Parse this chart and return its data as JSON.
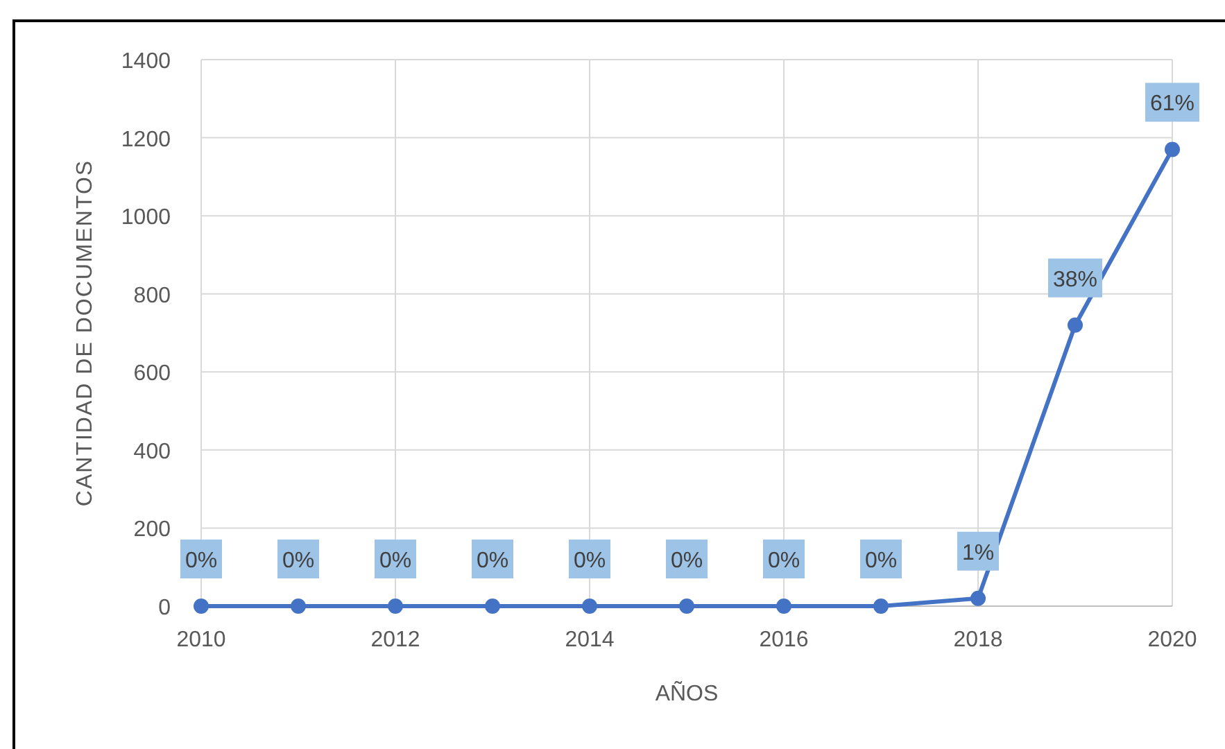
{
  "chart_data": {
    "type": "line",
    "xlabel": "AÑOS",
    "ylabel": "CANTIDAD DE DOCUMENTOS",
    "x": [
      2010,
      2011,
      2012,
      2013,
      2014,
      2015,
      2016,
      2017,
      2018,
      2019,
      2020
    ],
    "series": [
      {
        "color": "#4472c4",
        "values": [
          0,
          0,
          0,
          0,
          0,
          0,
          0,
          0,
          20,
          720,
          1170
        ]
      }
    ],
    "annotations": [
      {
        "text": "0%",
        "x": 2010,
        "y": 0
      },
      {
        "text": "0%",
        "x": 2011,
        "y": 0
      },
      {
        "text": "0%",
        "x": 2012,
        "y": 0
      },
      {
        "text": "0%",
        "x": 2013,
        "y": 0
      },
      {
        "text": "0%",
        "x": 2014,
        "y": 0
      },
      {
        "text": "0%",
        "x": 2015,
        "y": 0
      },
      {
        "text": "0%",
        "x": 2016,
        "y": 0
      },
      {
        "text": "0%",
        "x": 2017,
        "y": 0
      },
      {
        "text": "1%",
        "x": 2018,
        "y": 20
      },
      {
        "text": "38%",
        "x": 2019,
        "y": 720
      },
      {
        "text": "61%",
        "x": 2020,
        "y": 1170
      }
    ],
    "xlim": [
      2010,
      2020
    ],
    "xticks": [
      2010,
      2012,
      2014,
      2016,
      2018,
      2020
    ],
    "ylim": [
      0,
      1400
    ],
    "yticks": [
      0,
      200,
      400,
      600,
      800,
      1000,
      1200,
      1400
    ],
    "grid": true,
    "marker": "circle",
    "line_style": "solid"
  }
}
